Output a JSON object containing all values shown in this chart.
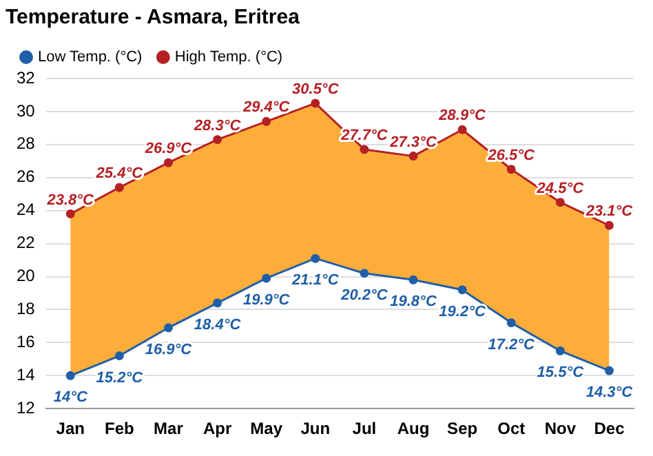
{
  "chart_data": {
    "type": "line",
    "title": "Temperature - Asmara, Eritrea",
    "categories": [
      "Jan",
      "Feb",
      "Mar",
      "Apr",
      "May",
      "Jun",
      "Jul",
      "Aug",
      "Sep",
      "Oct",
      "Nov",
      "Dec"
    ],
    "series": [
      {
        "name": "Low Temp. (°C)",
        "color": "#1f5fa8",
        "values": [
          14,
          15.2,
          16.9,
          18.4,
          19.9,
          21.1,
          20.2,
          19.8,
          19.2,
          17.2,
          15.5,
          14.3
        ],
        "value_labels": [
          "14°C",
          "15.2°C",
          "16.9°C",
          "18.4°C",
          "19.9°C",
          "21.1°C",
          "20.2°C",
          "19.8°C",
          "19.2°C",
          "17.2°C",
          "15.5°C",
          "14.3°C"
        ]
      },
      {
        "name": "High Temp. (°C)",
        "color": "#b52025",
        "values": [
          23.8,
          25.4,
          26.9,
          28.3,
          29.4,
          30.5,
          27.7,
          27.3,
          28.9,
          26.5,
          24.5,
          23.1
        ],
        "value_labels": [
          "23.8°C",
          "25.4°C",
          "26.9°C",
          "28.3°C",
          "29.4°C",
          "30.5°C",
          "27.7°C",
          "27.3°C",
          "28.9°C",
          "26.5°C",
          "24.5°C",
          "23.1°C"
        ]
      }
    ],
    "ylim": [
      12,
      32
    ],
    "yticks": [
      12,
      14,
      16,
      18,
      20,
      22,
      24,
      26,
      28,
      30,
      32
    ],
    "grid": "y",
    "legend": "top left",
    "marker": "circle",
    "line_style": "solid"
  }
}
